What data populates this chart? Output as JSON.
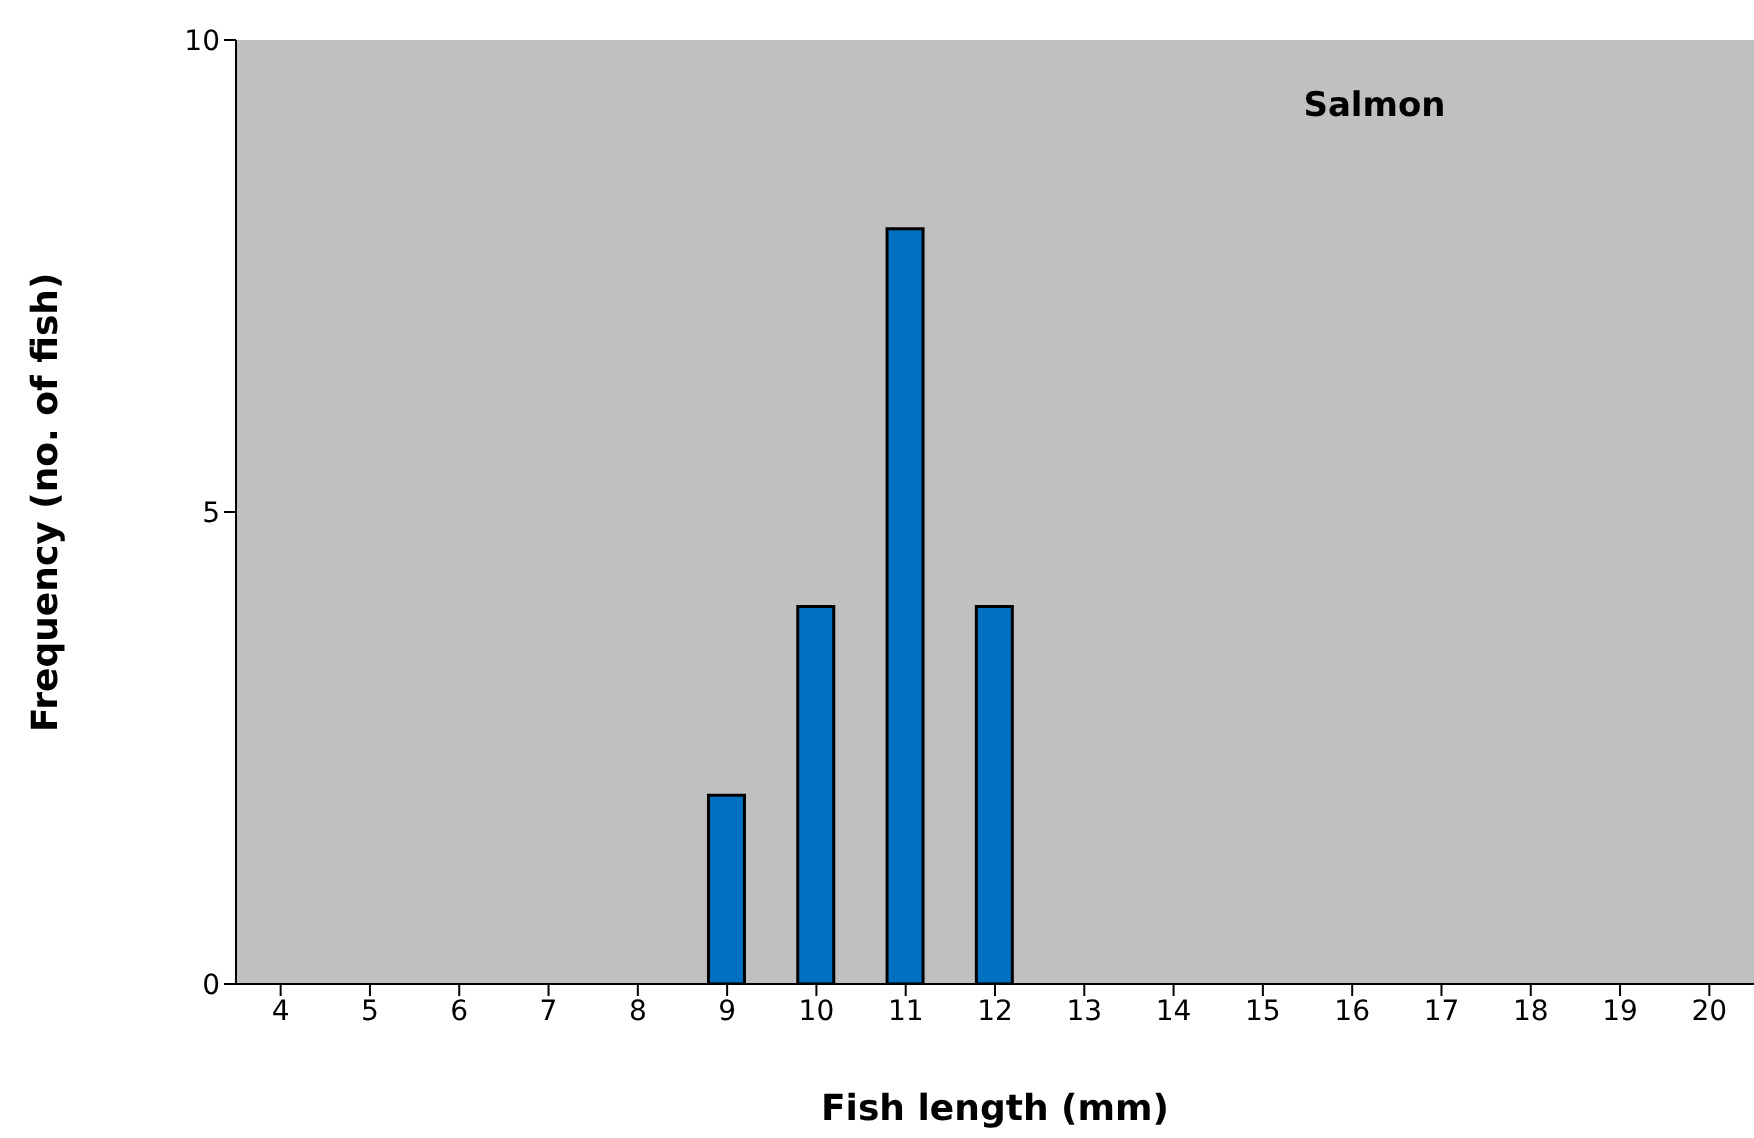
{
  "chart_data": {
    "type": "bar",
    "xlabel": "Fish length (mm)",
    "ylabel": "Frequency (no. of fish)",
    "annotations": [
      "Salmon"
    ],
    "categories": [
      "4",
      "5",
      "6",
      "7",
      "8",
      "9",
      "10",
      "11",
      "12",
      "13",
      "14",
      "15",
      "16",
      "17",
      "18",
      "19",
      "20"
    ],
    "values": [
      0,
      0,
      0,
      0,
      0,
      2,
      4,
      8,
      4,
      0,
      0,
      0,
      0,
      0,
      0,
      0,
      0
    ],
    "color": "#0070c0",
    "ylim": [
      0,
      10
    ],
    "yticks": [
      0,
      5,
      10
    ],
    "grid": false,
    "legend": false
  }
}
